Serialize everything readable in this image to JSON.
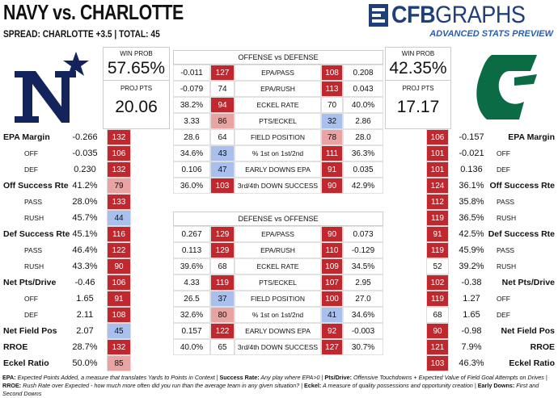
{
  "header": {
    "title": "NAVY vs. CHARLOTTE",
    "subtitle": "SPREAD: CHARLOTTE +3.5 | TOTAL: 45",
    "logo_bold": "CFB",
    "logo_light": "GRAPHS",
    "tagline": "ADVANCED STATS PREVIEW"
  },
  "teams": [
    {
      "win_prob_label": "WIN PROB",
      "win_prob": "57.65%",
      "proj_pts_label": "PROJ PTS",
      "proj_pts": "20.06"
    },
    {
      "win_prob_label": "WIN PROB",
      "win_prob": "42.35%",
      "proj_pts_label": "PROJ PTS",
      "proj_pts": "17.17"
    }
  ],
  "left_stats": [
    {
      "label": "EPA Margin",
      "value": "-0.266",
      "rank": 132
    },
    {
      "label": "OFF",
      "value": "-0.035",
      "rank": 106
    },
    {
      "label": "DEF",
      "value": "0.230",
      "rank": 132
    },
    {
      "label": "Off Success Rte",
      "value": "41.2%",
      "rank": 79
    },
    {
      "label": "PASS",
      "value": "28.0%",
      "rank": 133
    },
    {
      "label": "RUSH",
      "value": "45.7%",
      "rank": 44
    },
    {
      "label": "Def Success Rte",
      "value": "45.1%",
      "rank": 116
    },
    {
      "label": "PASS",
      "value": "46.4%",
      "rank": 122
    },
    {
      "label": "RUSH",
      "value": "43.3%",
      "rank": 90
    },
    {
      "label": "Net Pts/Drive",
      "value": "-0.46",
      "rank": 106
    },
    {
      "label": "OFF",
      "value": "1.65",
      "rank": 91
    },
    {
      "label": "DEF",
      "value": "2.11",
      "rank": 108
    },
    {
      "label": "Net Field Pos",
      "value": "2.07",
      "rank": 45
    },
    {
      "label": "RROE",
      "value": "28.7%",
      "rank": 132
    },
    {
      "label": "Eckel Ratio",
      "value": "50.0%",
      "rank": 85
    }
  ],
  "right_stats": [
    {
      "label": "EPA Margin",
      "value": "-0.157",
      "rank": 106
    },
    {
      "label": "OFF",
      "value": "-0.021",
      "rank": 101
    },
    {
      "label": "DEF",
      "value": "0.136",
      "rank": 101
    },
    {
      "label": "Off Success Rte",
      "value": "36.1%",
      "rank": 124
    },
    {
      "label": "PASS",
      "value": "35.8%",
      "rank": 112
    },
    {
      "label": "RUSH",
      "value": "36.5%",
      "rank": 119
    },
    {
      "label": "Def Success Rte",
      "value": "42.5%",
      "rank": 91
    },
    {
      "label": "PASS",
      "value": "45.9%",
      "rank": 119
    },
    {
      "label": "RUSH",
      "value": "39.2%",
      "rank": 52
    },
    {
      "label": "Net Pts/Drive",
      "value": "-0.38",
      "rank": 102
    },
    {
      "label": "OFF",
      "value": "1.27",
      "rank": 119
    },
    {
      "label": "DEF",
      "value": "1.65",
      "rank": 68
    },
    {
      "label": "Net Field Pos",
      "value": "-0.98",
      "rank": 90
    },
    {
      "label": "RROE",
      "value": "7.9%",
      "rank": 121
    },
    {
      "label": "Eckel Ratio",
      "value": "46.3%",
      "rank": 103
    }
  ],
  "tables": [
    {
      "title": "OFFENSE vs DEFENSE",
      "rows": [
        [
          "-0.011",
          127,
          "EPA/PASS",
          108,
          "0.208"
        ],
        [
          "-0.079",
          74,
          "EPA/RUSH",
          113,
          "0.043"
        ],
        [
          "38.2%",
          94,
          "ECKEL RATE",
          70,
          "40.0%"
        ],
        [
          "3.33",
          86,
          "PTS/ECKEL",
          32,
          "2.86"
        ],
        [
          "28.6",
          64,
          "FIELD POSITION",
          78,
          "28.0"
        ],
        [
          "34.6%",
          43,
          "% 1st on 1st/2nd",
          111,
          "36.3%"
        ],
        [
          "0.106",
          47,
          "EARLY DOWNS EPA",
          91,
          "0.035"
        ],
        [
          "36.0%",
          103,
          "3rd/4th DOWN SUCCESS",
          90,
          "42.9%"
        ]
      ]
    },
    {
      "title": "DEFENSE vs OFFENSE",
      "rows": [
        [
          "0.267",
          129,
          "EPA/PASS",
          90,
          "0.073"
        ],
        [
          "0.113",
          129,
          "EPA/RUSH",
          110,
          "-0.129"
        ],
        [
          "39.6%",
          68,
          "ECKEL RATE",
          109,
          "34.5%"
        ],
        [
          "4.33",
          119,
          "PTS/ECKEL",
          107,
          "2.95"
        ],
        [
          "26.5",
          37,
          "FIELD POSITION",
          100,
          "27.0"
        ],
        [
          "32.6%",
          80,
          "% 1st on 1st/2nd",
          41,
          "34.6%"
        ],
        [
          "0.157",
          122,
          "EARLY DOWNS EPA",
          92,
          "-0.003"
        ],
        [
          "40.0%",
          65,
          "3rd/4th DOWN SUCCESS",
          127,
          "30.7%"
        ]
      ]
    }
  ],
  "footer": [
    {
      "term": "EPA:",
      "text": " Expected Points Added, a measure that translates Yards to Points in Context | "
    },
    {
      "term": "Success Rate:",
      "text": " Any play where EPA>0 | "
    },
    {
      "term": "Pts/Drive:",
      "text": " Offensive Touchdowns + Expected Value of Field Goal Attempts on Drives | "
    },
    {
      "term": "RROE:",
      "text": " Rush Rate over Expected - how much more often did you run than the average team in any given situation? | "
    },
    {
      "term": "Eckel:",
      "text": " A measure of quality possessions and opportunity creation | "
    },
    {
      "term": "Early Downs:",
      "text": " First and Second Downs"
    }
  ]
}
